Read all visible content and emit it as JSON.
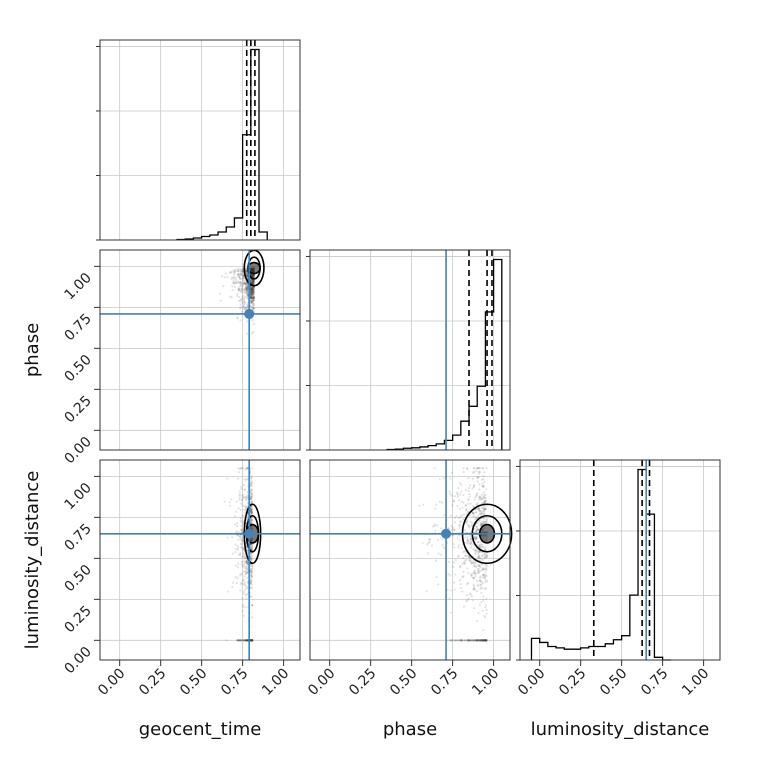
{
  "chart_data": {
    "type": "corner",
    "parameters": [
      "geocent_time",
      "phase",
      "luminosity_distance"
    ],
    "ticks": [
      "0.00",
      "0.25",
      "0.50",
      "0.75",
      "1.00"
    ],
    "tick_values": [
      0,
      0.25,
      0.5,
      0.75,
      1.0
    ],
    "xlim": [
      -0.12,
      1.1
    ],
    "ylim": [
      -0.12,
      1.1
    ],
    "grid": true,
    "colors": {
      "truth": "#4682b4",
      "hist": "#000000",
      "samples": "#444444"
    },
    "truths": {
      "geocent_time": 0.79,
      "phase": 0.71,
      "luminosity_distance": 0.65
    },
    "histograms": {
      "geocent_time": {
        "bin_edges": [
          0.35,
          0.4,
          0.45,
          0.5,
          0.55,
          0.6,
          0.65,
          0.7,
          0.75,
          0.8,
          0.85,
          0.9
        ],
        "counts": [
          0.5,
          1.0,
          2.0,
          3.5,
          5.0,
          8.0,
          13.0,
          22.0,
          105.0,
          190.0,
          8.0
        ],
        "quantiles": [
          0.775,
          0.8,
          0.825
        ]
      },
      "phase": {
        "bin_edges": [
          0.35,
          0.4,
          0.45,
          0.5,
          0.55,
          0.6,
          0.65,
          0.7,
          0.75,
          0.8,
          0.85,
          0.9,
          0.95,
          1.0,
          1.05
        ],
        "counts": [
          0.5,
          1.0,
          2.0,
          2.5,
          3.5,
          5.0,
          7.0,
          11.0,
          17.0,
          33.0,
          50.0,
          73.0,
          158.0,
          218.0
        ],
        "quantiles": [
          0.85,
          0.96,
          0.99
        ]
      },
      "luminosity_distance": {
        "bin_edges": [
          -0.05,
          0.0,
          0.05,
          0.1,
          0.15,
          0.2,
          0.25,
          0.3,
          0.35,
          0.4,
          0.45,
          0.5,
          0.55,
          0.6,
          0.65,
          0.7,
          0.75,
          0.8
        ],
        "counts": [
          16,
          13,
          10,
          9,
          8,
          8,
          9,
          10,
          10,
          12,
          15,
          18,
          48,
          141,
          108,
          2,
          0
        ],
        "quantiles": [
          0.33,
          0.625,
          0.67
        ]
      }
    },
    "scatter": [
      {
        "x": "geocent_time",
        "y": "phase",
        "density_center": [
          0.82,
          0.99
        ],
        "spread": [
          0.06,
          0.12
        ]
      },
      {
        "x": "geocent_time",
        "y": "luminosity_distance",
        "density_center": [
          0.81,
          0.65
        ],
        "spread": [
          0.05,
          0.2
        ]
      },
      {
        "x": "phase",
        "y": "luminosity_distance",
        "density_center": [
          0.96,
          0.65
        ],
        "spread": [
          0.15,
          0.2
        ]
      }
    ]
  }
}
